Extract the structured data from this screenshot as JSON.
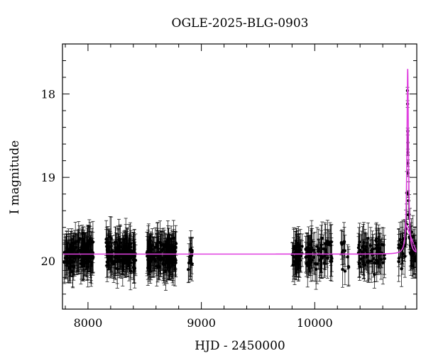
{
  "chart_data": {
    "type": "scatter",
    "title": "OGLE-2025-BLG-0903",
    "xlabel": "HJD - 2450000",
    "ylabel": "I magnitude",
    "xlim": [
      7775,
      10900
    ],
    "ylim": [
      20.58,
      17.4
    ],
    "y_inverted": true,
    "grid": false,
    "x_ticks": [
      "8000",
      "9000",
      "10000"
    ],
    "y_ticks": [
      "18",
      "19",
      "20"
    ],
    "x_tick_values": [
      8000,
      9000,
      10000
    ],
    "y_tick_values": [
      18,
      19,
      20
    ],
    "baseline_mag": 19.92,
    "point_color": "#000000",
    "model_color": "#e040e0",
    "seasons": [
      {
        "start": 7790,
        "end": 8050,
        "count": 150
      },
      {
        "start": 8160,
        "end": 8420,
        "count": 150
      },
      {
        "start": 8520,
        "end": 8780,
        "count": 150
      },
      {
        "start": 8880,
        "end": 8920,
        "count": 12
      },
      {
        "start": 9800,
        "end": 9890,
        "count": 40
      },
      {
        "start": 9920,
        "end": 10160,
        "count": 70
      },
      {
        "start": 10230,
        "end": 10300,
        "count": 12
      },
      {
        "start": 10380,
        "end": 10620,
        "count": 70
      },
      {
        "start": 10740,
        "end": 10900,
        "count": 60
      }
    ],
    "event": {
      "t0": 10820,
      "peak_mag": 17.7,
      "half_width_days": 8
    },
    "peak_points": [
      {
        "x": 10818,
        "y": 17.96
      },
      {
        "x": 10819,
        "y": 18.12
      },
      {
        "x": 10820,
        "y": 18.45
      },
      {
        "x": 10821,
        "y": 18.7
      },
      {
        "x": 10822,
        "y": 18.83
      },
      {
        "x": 10823,
        "y": 18.95
      },
      {
        "x": 10824,
        "y": 19.2
      },
      {
        "x": 10825,
        "y": 19.45
      }
    ]
  }
}
